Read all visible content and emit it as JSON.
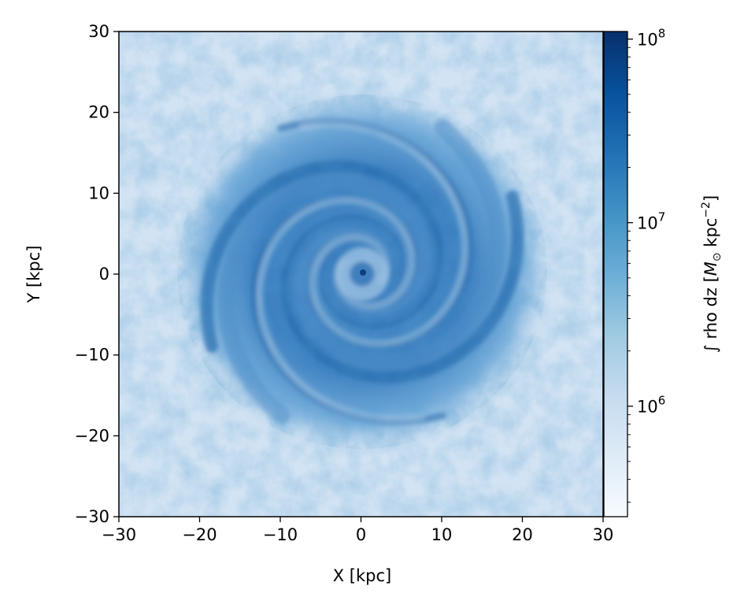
{
  "chart_data": {
    "type": "heatmap",
    "title": "",
    "xlabel": "X [kpc]",
    "ylabel": "Y [kpc]",
    "xlim": [
      -30,
      30
    ],
    "ylim": [
      -30,
      30
    ],
    "x_ticks": [
      "−30",
      "−20",
      "−10",
      "0",
      "10",
      "20",
      "30"
    ],
    "y_ticks": [
      "−30",
      "−20",
      "−10",
      "0",
      "10",
      "20",
      "30"
    ],
    "x_tick_values": [
      -30,
      -20,
      -10,
      0,
      10,
      20,
      30
    ],
    "y_tick_values": [
      -30,
      -20,
      -10,
      0,
      10,
      20,
      30
    ],
    "colormap": "Blues",
    "colorbar": {
      "label_prefix": "∫ rho dz [",
      "label_symbol": "M",
      "label_subscript": "⊙",
      "label_unit": " kpc",
      "label_exponent": "−2",
      "label_suffix": "]",
      "scale": "log",
      "range": [
        250000,
        110000000
      ],
      "tick_values": [
        1000000,
        10000000,
        100000000
      ],
      "tick_bases": [
        "10",
        "10",
        "10"
      ],
      "tick_exponents": [
        "6",
        "7",
        "8"
      ]
    },
    "description_of_field": "spiral",
    "grid": false
  }
}
